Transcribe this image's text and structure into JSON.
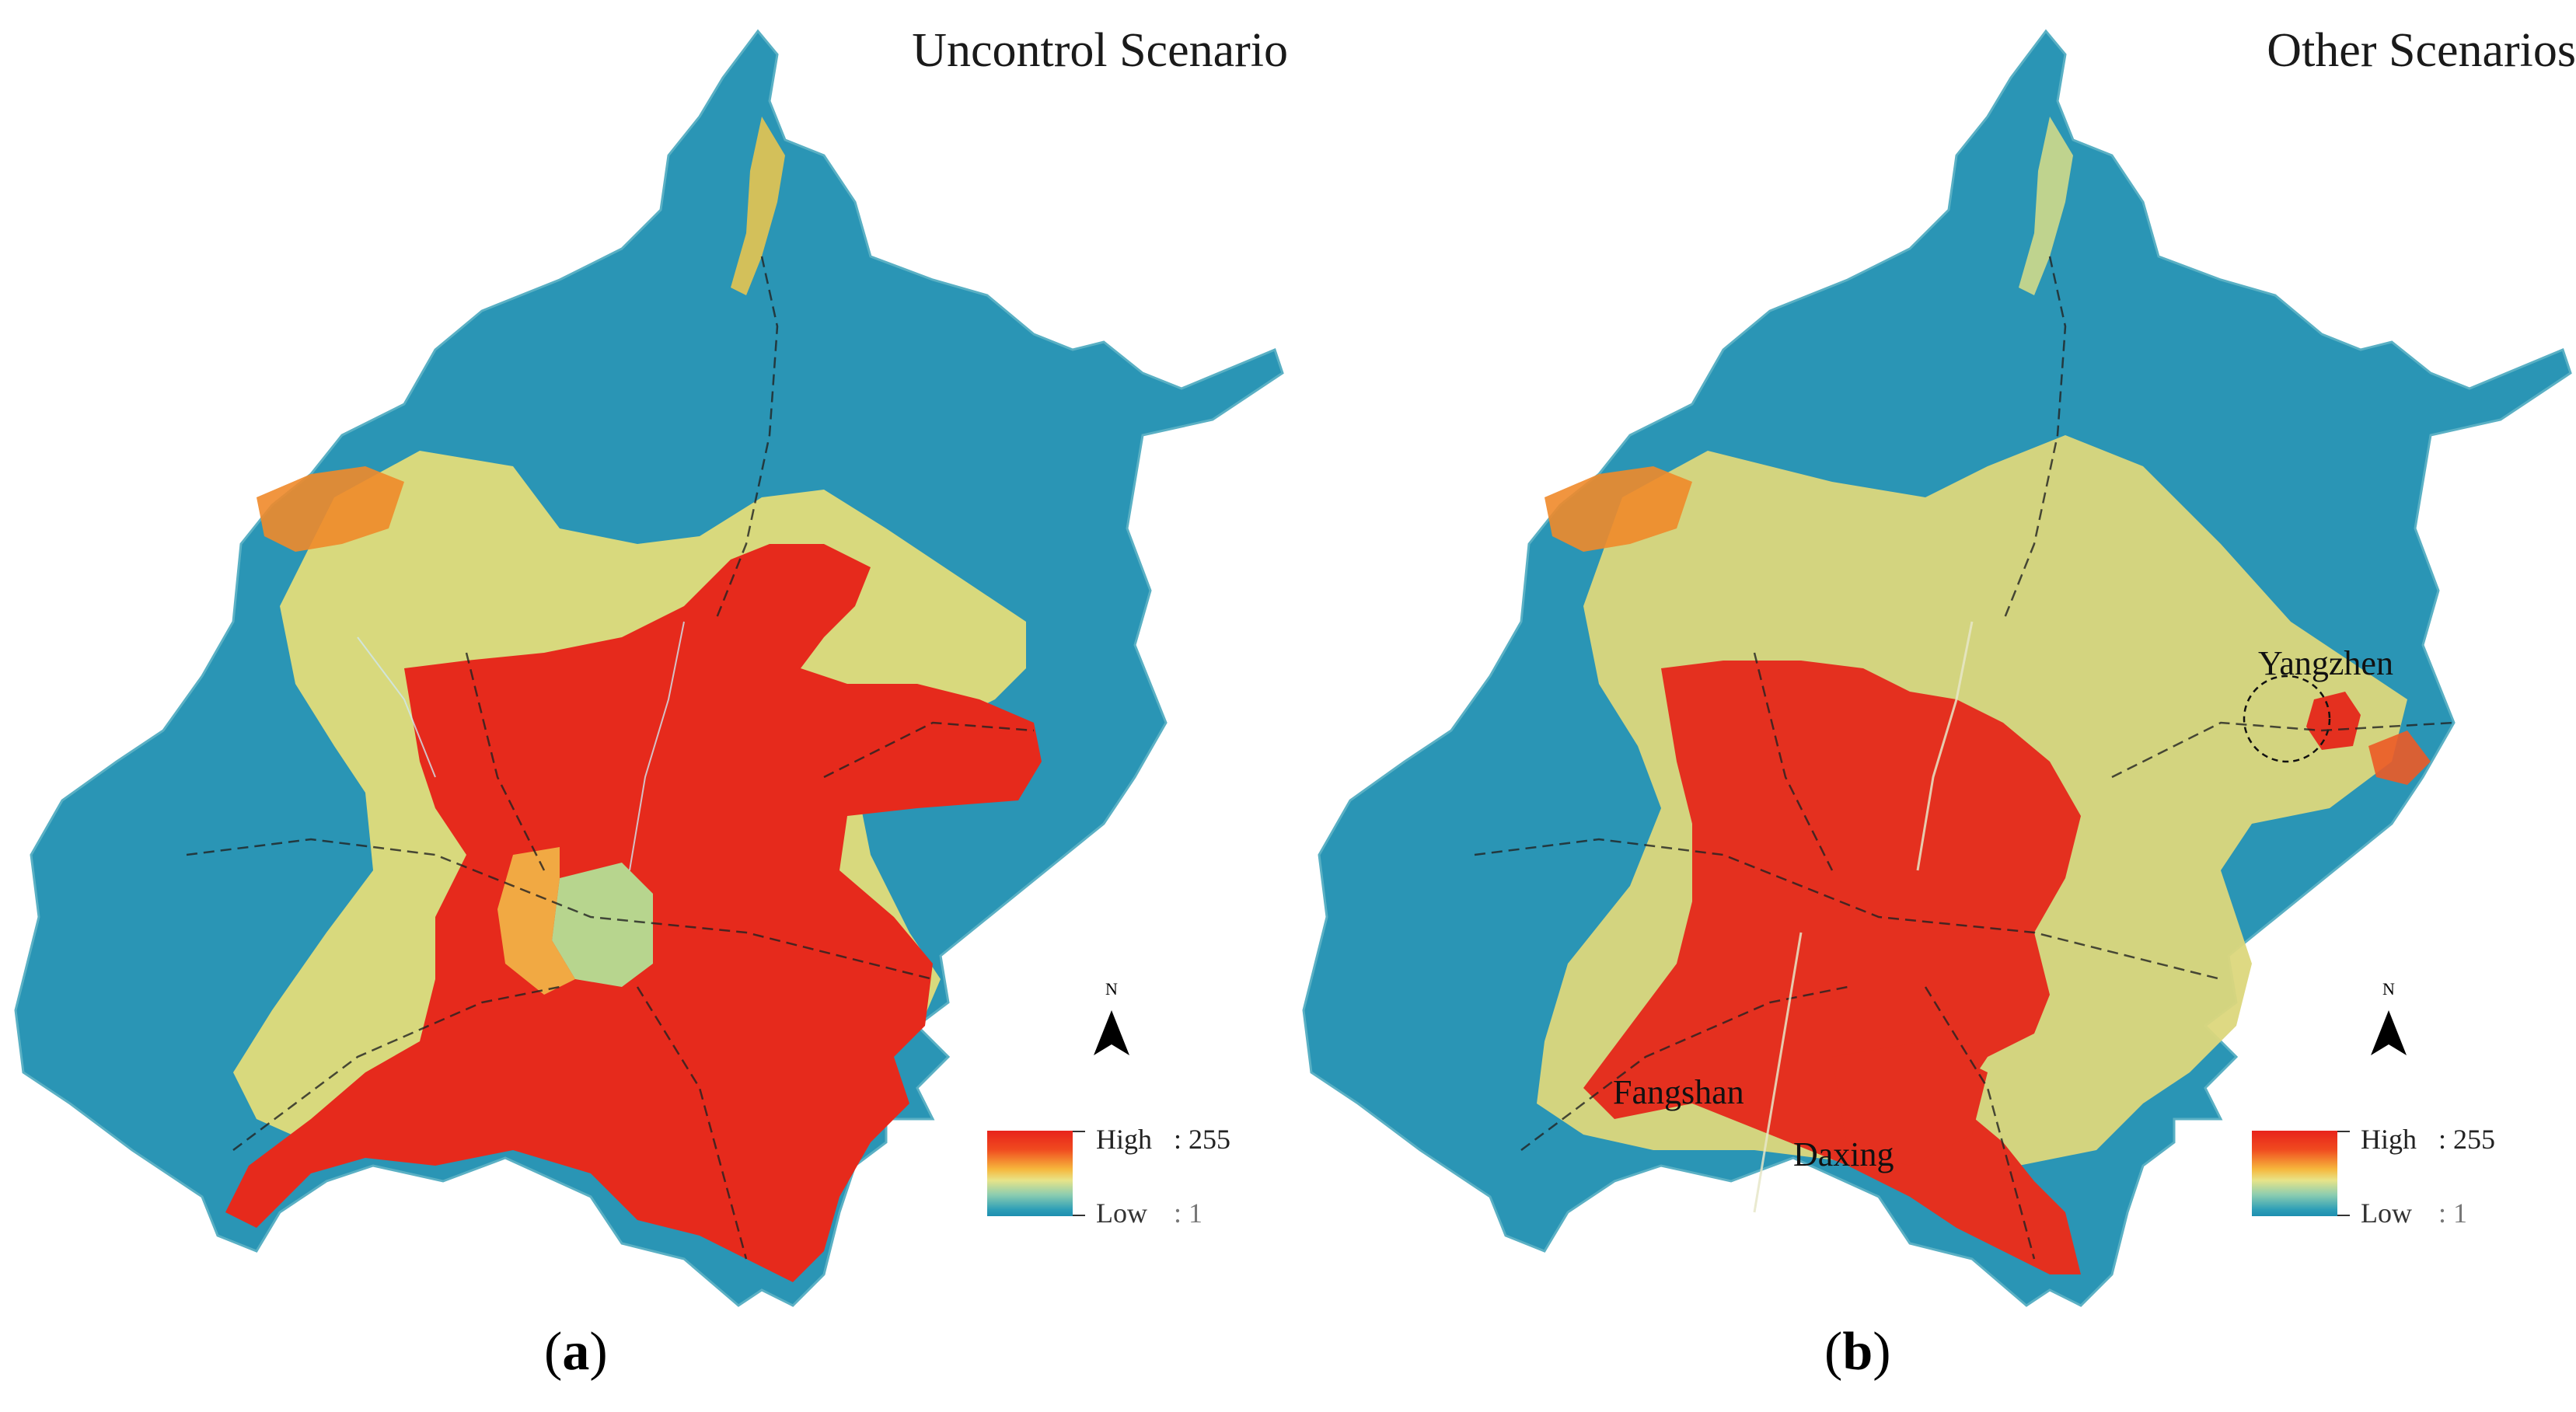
{
  "panels": [
    {
      "id": "a",
      "title": "Uncontrol Scenario",
      "label_open": "(",
      "label_letter": "a",
      "label_close": ")",
      "legend": {
        "high_word": "High",
        "high_value": ": 255",
        "low_word": "Low",
        "low_value": ": 1"
      },
      "north": "N",
      "places": []
    },
    {
      "id": "b",
      "title": "Other Scenarios",
      "label_open": "(",
      "label_letter": "b",
      "label_close": ")",
      "legend": {
        "high_word": "High",
        "high_value": ": 255",
        "low_word": "Low",
        "low_value": ": 1"
      },
      "north": "N",
      "places": [
        "Yangzhen",
        "Fangshan",
        "Daxing"
      ]
    }
  ],
  "colors": {
    "low": "#1e8fb0",
    "mid": "#e8e488",
    "high": "#e8231b",
    "ramp_stops": [
      "#e8231b",
      "#f6b73c",
      "#e8e488",
      "#8ccdb0",
      "#1e8fb0"
    ]
  }
}
